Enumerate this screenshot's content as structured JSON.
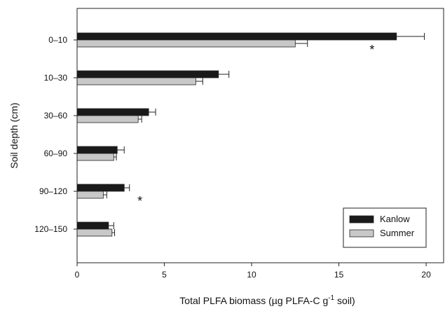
{
  "chart_data": {
    "type": "bar",
    "orientation": "horizontal",
    "xlabel": "Total PLFA biomass (µg PLFA-C g",
    "xlabel_superscript": "-1",
    "xlabel_suffix": " soil)",
    "ylabel": "Soil depth (cm)",
    "xlim": [
      0,
      21
    ],
    "xticks": [
      "0",
      "5",
      "10",
      "15",
      "20"
    ],
    "categories": [
      "0–10",
      "10–30",
      "30–60",
      "60–90",
      "90–120",
      "120–150"
    ],
    "series": [
      {
        "name": "Kanlow",
        "color": "#1a1a1a",
        "values": [
          18.3,
          8.1,
          4.1,
          2.3,
          2.7,
          1.8
        ],
        "errors": [
          1.6,
          0.6,
          0.4,
          0.4,
          0.3,
          0.3
        ]
      },
      {
        "name": "Summer",
        "color": "#c8c8c8",
        "values": [
          12.5,
          6.8,
          3.5,
          2.1,
          1.5,
          2.0
        ],
        "errors": [
          0.7,
          0.4,
          0.2,
          0.15,
          0.2,
          0.15
        ]
      }
    ],
    "annotations": [
      {
        "text": "*",
        "category": "0–10",
        "x": 16.9
      },
      {
        "text": "*",
        "category": "90–120",
        "x": 3.6
      }
    ],
    "legend_position": "bottom-right",
    "grid": false
  }
}
